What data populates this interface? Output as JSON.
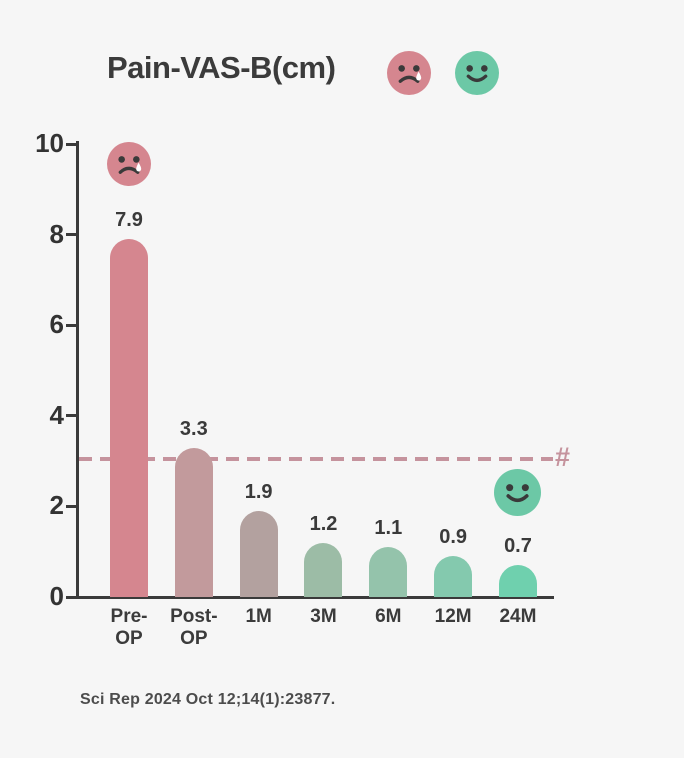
{
  "page": {
    "background_color": "#f6f6f6"
  },
  "header": {
    "title": "Pain-VAS-B(cm)",
    "sad_face_icon_color": "#d5868f",
    "happy_face_icon_color": "#6cc8a6"
  },
  "chart_data": {
    "type": "bar",
    "title": "Pain-VAS-B(cm)",
    "categories": [
      "Pre-OP",
      "Post-OP",
      "1M",
      "3M",
      "6M",
      "12M",
      "24M"
    ],
    "category_display": [
      "Pre-\nOP",
      "Post-\nOP",
      "1M",
      "3M",
      "6M",
      "12M",
      "24M"
    ],
    "values": [
      7.9,
      3.3,
      1.9,
      1.2,
      1.1,
      0.9,
      0.7
    ],
    "value_labels": [
      "7.9",
      "3.3",
      "1.9",
      "1.2",
      "1.1",
      "0.9",
      "0.7"
    ],
    "bar_colors": [
      "#d5868f",
      "#c29a9c",
      "#b3a19f",
      "#9cbca6",
      "#94c3ab",
      "#84c9ae",
      "#6fd0ae"
    ],
    "xlabel": "",
    "ylabel": "",
    "ylim": [
      0,
      10
    ],
    "yticks": [
      0,
      2,
      4,
      6,
      8,
      10
    ],
    "grid": false,
    "legend": false,
    "reference_line": {
      "value": 3.05,
      "label": "#",
      "style": "dashed",
      "color": "#c5939d"
    },
    "annotations": [
      {
        "icon": "sad-face",
        "target": "Pre-OP",
        "color": "#d5868f"
      },
      {
        "icon": "happy-face",
        "target": "24M",
        "color": "#6cc8a6"
      }
    ]
  },
  "footer": {
    "citation": "Sci Rep 2024 Oct 12;14(1):23877."
  }
}
